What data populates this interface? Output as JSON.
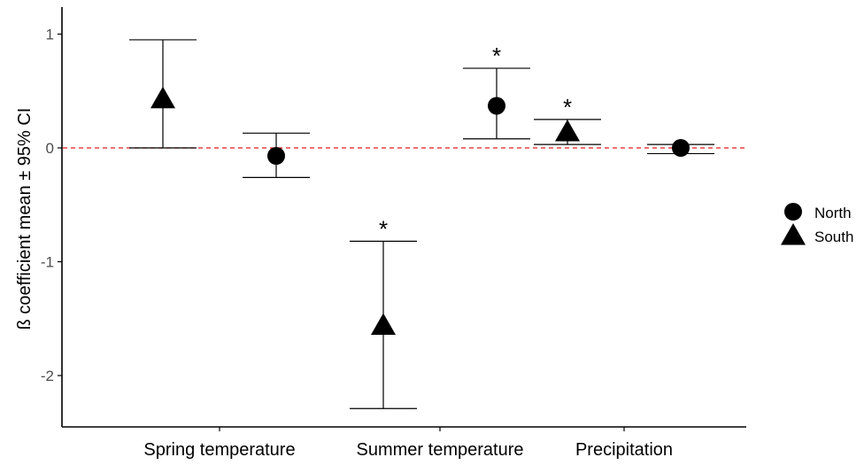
{
  "chart_data": {
    "type": "scatter",
    "ylabel": "ß coefficient mean ± 95% CI",
    "xlabel": "",
    "categories": [
      "Spring temperature",
      "Summer temperature",
      "Precipitation"
    ],
    "ylim": [
      -2.45,
      1.22
    ],
    "yticks": [
      1,
      0,
      -1,
      -2
    ],
    "ytick_labels": [
      "1",
      "0",
      "-1",
      "-2"
    ],
    "reference_line": {
      "y": 0,
      "style": "dashed",
      "color": "#e41a1c"
    },
    "grid": false,
    "legend": {
      "position": "right",
      "entries": [
        "North",
        "South"
      ]
    },
    "points": [
      {
        "category": "Spring temperature",
        "series": "South",
        "shape": "triangle",
        "offset": -1,
        "mean": 0.43,
        "lower": 0.0,
        "upper": 0.95,
        "significant": false
      },
      {
        "category": "Spring temperature",
        "series": "North",
        "shape": "circle",
        "offset": 1,
        "mean": -0.07,
        "lower": -0.26,
        "upper": 0.13,
        "significant": false
      },
      {
        "category": "Summer temperature",
        "series": "South",
        "shape": "triangle",
        "offset": -1,
        "mean": -1.56,
        "lower": -2.29,
        "upper": -0.82,
        "significant": true
      },
      {
        "category": "Summer temperature",
        "series": "North",
        "shape": "circle",
        "offset": 1,
        "mean": 0.37,
        "lower": 0.08,
        "upper": 0.7,
        "significant": true
      },
      {
        "category": "Precipitation",
        "series": "South",
        "shape": "triangle",
        "offset": -1,
        "mean": 0.14,
        "lower": 0.03,
        "upper": 0.25,
        "significant": true
      },
      {
        "category": "Precipitation",
        "series": "North",
        "shape": "circle",
        "offset": 1,
        "mean": 0.0,
        "lower": -0.05,
        "upper": 0.03,
        "significant": false
      }
    ],
    "significance_marker": "*"
  },
  "colors": {
    "marker": "#000000",
    "axis": "#000000",
    "reference": "#e41a1c"
  }
}
